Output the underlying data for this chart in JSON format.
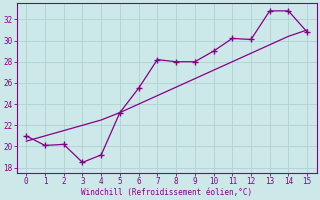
{
  "xlabel": "Windchill (Refroidissement éolien,°C)",
  "bg_color": "#cce8e8",
  "line_color": "#880088",
  "line1_x": [
    0,
    1,
    2,
    3,
    4,
    5,
    6,
    7,
    8,
    9,
    10,
    11,
    12,
    13,
    14,
    15
  ],
  "line1_y": [
    21.0,
    20.1,
    20.2,
    18.5,
    19.2,
    23.2,
    25.5,
    28.2,
    28.0,
    28.0,
    29.0,
    30.2,
    30.1,
    32.8,
    32.8,
    30.8
  ],
  "line2_x": [
    0,
    1,
    2,
    3,
    4,
    5,
    6,
    7,
    8,
    9,
    10,
    11,
    12,
    13,
    14,
    15
  ],
  "line2_y": [
    20.5,
    21.0,
    21.5,
    22.0,
    22.5,
    23.2,
    24.0,
    24.8,
    25.6,
    26.4,
    27.2,
    28.0,
    28.8,
    29.6,
    30.4,
    31.0
  ],
  "xlim": [
    -0.5,
    15.5
  ],
  "ylim": [
    17.5,
    33.5
  ],
  "yticks": [
    18,
    20,
    22,
    24,
    26,
    28,
    30,
    32
  ],
  "xticks": [
    0,
    1,
    2,
    3,
    4,
    5,
    6,
    7,
    8,
    9,
    10,
    11,
    12,
    13,
    14,
    15
  ]
}
